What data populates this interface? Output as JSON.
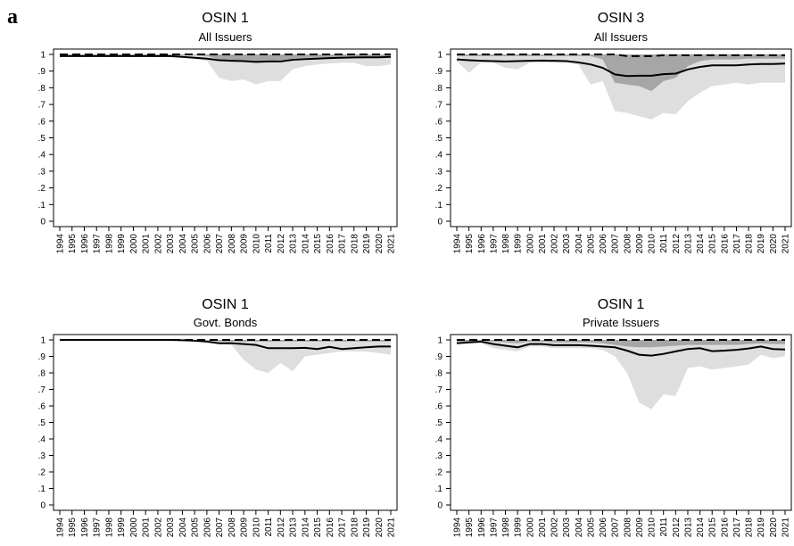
{
  "figure": {
    "panel_letter": "a"
  },
  "chart_data": [
    {
      "type": "line",
      "title": "OSIN 1",
      "subtitle": "All Issuers",
      "x": [
        1994,
        1995,
        1996,
        1997,
        1998,
        1999,
        2000,
        2001,
        2002,
        2003,
        2004,
        2005,
        2006,
        2007,
        2008,
        2009,
        2010,
        2011,
        2012,
        2013,
        2014,
        2015,
        2016,
        2017,
        2018,
        2019,
        2020,
        2021
      ],
      "ylim": [
        0,
        1
      ],
      "yticks": [
        0,
        0.1,
        0.2,
        0.3,
        0.4,
        0.5,
        0.6,
        0.7,
        0.8,
        0.9,
        1
      ],
      "ytick_labels": [
        "0",
        ".1",
        ".2",
        ".3",
        ".4",
        ".5",
        ".6",
        ".7",
        ".8",
        ".9",
        "1"
      ],
      "grid": false,
      "series": [
        {
          "style": "dashed",
          "values": [
            1,
            1,
            1,
            1,
            1,
            1,
            1,
            1,
            1,
            1,
            1,
            1,
            1,
            1,
            1,
            1,
            1,
            1,
            1,
            1,
            1,
            1,
            1,
            1,
            1,
            1,
            1,
            1
          ]
        },
        {
          "style": "solid",
          "values": [
            0.99,
            0.99,
            0.99,
            0.99,
            0.99,
            0.99,
            0.99,
            0.99,
            0.99,
            0.99,
            0.985,
            0.98,
            0.975,
            0.965,
            0.962,
            0.96,
            0.955,
            0.958,
            0.958,
            0.968,
            0.972,
            0.975,
            0.978,
            0.98,
            0.982,
            0.983,
            0.983,
            0.985
          ]
        }
      ],
      "bands": [
        {
          "shade": "light",
          "lower": [
            0.99,
            0.99,
            0.99,
            0.99,
            0.99,
            0.99,
            0.99,
            0.99,
            0.99,
            0.99,
            0.985,
            0.975,
            0.96,
            0.86,
            0.84,
            0.85,
            0.82,
            0.84,
            0.84,
            0.91,
            0.93,
            0.94,
            0.945,
            0.95,
            0.95,
            0.93,
            0.93,
            0.94
          ],
          "upper": [
            1,
            1,
            1,
            1,
            1,
            1,
            1,
            1,
            1,
            1,
            1,
            1,
            1,
            1,
            1,
            1,
            1,
            1,
            1,
            1,
            1,
            1,
            1,
            1,
            1,
            1,
            1,
            1
          ]
        },
        {
          "shade": "dark",
          "lower": [
            0.995,
            0.995,
            0.995,
            0.995,
            0.995,
            0.995,
            0.995,
            0.995,
            0.995,
            0.995,
            0.995,
            0.995,
            0.99,
            0.97,
            0.965,
            0.965,
            0.96,
            0.96,
            0.965,
            0.975,
            0.98,
            0.98,
            0.982,
            0.985,
            0.985,
            0.985,
            0.985,
            0.985
          ],
          "upper": [
            1,
            1,
            1,
            1,
            1,
            1,
            1,
            1,
            1,
            1,
            1,
            1,
            1,
            1,
            1,
            1,
            1,
            1,
            1,
            1,
            1,
            1,
            1,
            1,
            1,
            1,
            1,
            1
          ]
        }
      ]
    },
    {
      "type": "line",
      "title": "OSIN 3",
      "subtitle": "All Issuers",
      "x": [
        1994,
        1995,
        1996,
        1997,
        1998,
        1999,
        2000,
        2001,
        2002,
        2003,
        2004,
        2005,
        2006,
        2007,
        2008,
        2009,
        2010,
        2011,
        2012,
        2013,
        2014,
        2015,
        2016,
        2017,
        2018,
        2019,
        2020,
        2021
      ],
      "ylim": [
        0,
        1
      ],
      "yticks": [
        0,
        0.1,
        0.2,
        0.3,
        0.4,
        0.5,
        0.6,
        0.7,
        0.8,
        0.9,
        1
      ],
      "ytick_labels": [
        "0",
        ".1",
        ".2",
        ".3",
        ".4",
        ".5",
        ".6",
        ".7",
        ".8",
        ".9",
        "1"
      ],
      "grid": false,
      "series": [
        {
          "style": "dashed",
          "values": [
            1,
            1,
            1,
            1,
            1,
            1,
            1,
            1,
            1,
            1,
            1,
            1,
            1,
            1,
            0.99,
            0.99,
            0.99,
            0.995,
            0.995,
            0.995,
            0.995,
            0.995,
            0.995,
            0.995,
            0.995,
            0.995,
            0.995,
            0.995
          ]
        },
        {
          "style": "solid",
          "values": [
            0.97,
            0.965,
            0.962,
            0.96,
            0.958,
            0.96,
            0.962,
            0.963,
            0.962,
            0.96,
            0.952,
            0.94,
            0.92,
            0.88,
            0.87,
            0.872,
            0.872,
            0.882,
            0.885,
            0.91,
            0.925,
            0.935,
            0.935,
            0.935,
            0.94,
            0.942,
            0.943,
            0.945
          ]
        }
      ],
      "bands": [
        {
          "shade": "light",
          "lower": [
            0.96,
            0.89,
            0.95,
            0.95,
            0.92,
            0.91,
            0.95,
            0.95,
            0.95,
            0.95,
            0.94,
            0.82,
            0.84,
            0.66,
            0.65,
            0.63,
            0.61,
            0.65,
            0.64,
            0.72,
            0.77,
            0.81,
            0.82,
            0.83,
            0.82,
            0.83,
            0.83,
            0.83
          ],
          "upper": [
            1,
            1,
            1,
            1,
            1,
            1,
            1,
            1,
            1,
            1,
            1,
            1,
            1,
            1,
            1,
            1,
            1,
            1,
            1,
            1,
            1,
            1,
            1,
            1,
            1,
            1,
            1,
            1
          ]
        },
        {
          "shade": "dark",
          "lower": [
            0.99,
            0.99,
            0.99,
            0.99,
            0.99,
            0.99,
            0.99,
            0.99,
            0.99,
            0.99,
            0.99,
            0.99,
            0.97,
            0.83,
            0.82,
            0.81,
            0.78,
            0.84,
            0.86,
            0.93,
            0.96,
            0.97,
            0.97,
            0.97,
            0.975,
            0.975,
            0.975,
            0.975
          ],
          "upper": [
            1,
            1,
            1,
            1,
            1,
            1,
            1,
            1,
            1,
            1,
            1,
            1,
            1,
            1,
            1,
            1,
            1,
            1,
            1,
            1,
            1,
            1,
            1,
            1,
            1,
            1,
            1,
            1
          ]
        }
      ]
    },
    {
      "type": "line",
      "title": "OSIN 1",
      "subtitle": "Govt. Bonds",
      "x": [
        1994,
        1995,
        1996,
        1997,
        1998,
        1999,
        2000,
        2001,
        2002,
        2003,
        2004,
        2005,
        2006,
        2007,
        2008,
        2009,
        2010,
        2011,
        2012,
        2013,
        2014,
        2015,
        2016,
        2017,
        2018,
        2019,
        2020,
        2021
      ],
      "ylim": [
        0,
        1
      ],
      "yticks": [
        0,
        0.1,
        0.2,
        0.3,
        0.4,
        0.5,
        0.6,
        0.7,
        0.8,
        0.9,
        1
      ],
      "ytick_labels": [
        "0",
        ".1",
        ".2",
        ".3",
        ".4",
        ".5",
        ".6",
        ".7",
        ".8",
        ".9",
        "1"
      ],
      "grid": false,
      "series": [
        {
          "style": "dashed",
          "values": [
            1,
            1,
            1,
            1,
            1,
            1,
            1,
            1,
            1,
            1,
            1,
            1,
            1,
            1,
            1,
            1,
            1,
            1,
            1,
            1,
            1,
            1,
            1,
            1,
            1,
            1,
            1,
            1
          ]
        },
        {
          "style": "solid",
          "values": [
            1,
            1,
            1,
            1,
            1,
            1,
            1,
            1,
            1,
            1,
            0.998,
            0.995,
            0.99,
            0.98,
            0.98,
            0.975,
            0.97,
            0.95,
            0.95,
            0.95,
            0.952,
            0.945,
            0.958,
            0.945,
            0.95,
            0.955,
            0.96,
            0.96
          ]
        }
      ],
      "bands": [
        {
          "shade": "light",
          "lower": [
            1,
            1,
            1,
            1,
            1,
            1,
            1,
            1,
            1,
            1,
            0.995,
            0.99,
            0.99,
            0.98,
            0.97,
            0.88,
            0.82,
            0.8,
            0.86,
            0.81,
            0.9,
            0.91,
            0.92,
            0.93,
            0.93,
            0.93,
            0.92,
            0.91
          ],
          "upper": [
            1,
            1,
            1,
            1,
            1,
            1,
            1,
            1,
            1,
            1,
            1,
            1,
            1,
            1,
            1,
            1,
            1,
            1,
            1,
            1,
            1,
            1,
            1,
            1,
            1,
            1,
            1,
            1
          ]
        },
        {
          "shade": "dark",
          "lower": [
            1,
            1,
            1,
            1,
            1,
            1,
            1,
            1,
            1,
            1,
            1,
            1,
            0.998,
            0.992,
            0.99,
            0.99,
            0.99,
            0.99,
            0.99,
            0.99,
            0.99,
            0.99,
            0.99,
            0.99,
            0.99,
            0.99,
            0.99,
            0.99
          ],
          "upper": [
            1,
            1,
            1,
            1,
            1,
            1,
            1,
            1,
            1,
            1,
            1,
            1,
            1,
            1,
            1,
            1,
            1,
            1,
            1,
            1,
            1,
            1,
            1,
            1,
            1,
            1,
            1,
            1
          ]
        }
      ]
    },
    {
      "type": "line",
      "title": "OSIN 1",
      "subtitle": "Private Issuers",
      "x": [
        1994,
        1995,
        1996,
        1997,
        1998,
        1999,
        2000,
        2001,
        2002,
        2003,
        2004,
        2005,
        2006,
        2007,
        2008,
        2009,
        2010,
        2011,
        2012,
        2013,
        2014,
        2015,
        2016,
        2017,
        2018,
        2019,
        2020,
        2021
      ],
      "ylim": [
        0,
        1
      ],
      "yticks": [
        0,
        0.1,
        0.2,
        0.3,
        0.4,
        0.5,
        0.6,
        0.7,
        0.8,
        0.9,
        1
      ],
      "ytick_labels": [
        "0",
        ".1",
        ".2",
        ".3",
        ".4",
        ".5",
        ".6",
        ".7",
        ".8",
        ".9",
        "1"
      ],
      "grid": false,
      "series": [
        {
          "style": "dashed",
          "values": [
            1,
            1,
            1,
            1,
            1,
            1,
            1,
            1,
            1,
            1,
            1,
            1,
            1,
            1,
            1,
            1,
            1,
            1,
            1,
            1,
            1,
            1,
            1,
            1,
            1,
            1,
            1,
            1
          ]
        },
        {
          "style": "solid",
          "values": [
            0.98,
            0.985,
            0.99,
            0.975,
            0.965,
            0.955,
            0.975,
            0.975,
            0.968,
            0.968,
            0.968,
            0.965,
            0.96,
            0.955,
            0.935,
            0.91,
            0.905,
            0.915,
            0.93,
            0.945,
            0.95,
            0.932,
            0.935,
            0.94,
            0.948,
            0.96,
            0.945,
            0.942
          ]
        }
      ],
      "bands": [
        {
          "shade": "light",
          "lower": [
            0.975,
            0.98,
            0.98,
            0.95,
            0.94,
            0.93,
            0.96,
            0.96,
            0.95,
            0.95,
            0.95,
            0.95,
            0.94,
            0.9,
            0.8,
            0.62,
            0.58,
            0.67,
            0.66,
            0.83,
            0.84,
            0.82,
            0.83,
            0.84,
            0.85,
            0.91,
            0.89,
            0.9
          ],
          "upper": [
            1,
            1,
            1,
            1,
            1,
            1,
            1,
            1,
            1,
            1,
            1,
            1,
            1,
            1,
            1,
            1,
            1,
            1,
            1,
            1,
            1,
            1,
            1,
            1,
            1,
            1,
            1,
            1
          ]
        },
        {
          "shade": "dark",
          "lower": [
            0.99,
            0.99,
            0.995,
            0.99,
            0.985,
            0.98,
            0.99,
            0.99,
            0.985,
            0.985,
            0.985,
            0.985,
            0.98,
            0.97,
            0.96,
            0.955,
            0.955,
            0.96,
            0.965,
            0.97,
            0.97,
            0.97,
            0.97,
            0.97,
            0.975,
            0.98,
            0.975,
            0.975
          ],
          "upper": [
            1,
            1,
            1,
            1,
            1,
            1,
            1,
            1,
            1,
            1,
            1,
            1,
            1,
            1,
            1,
            1,
            1,
            1,
            1,
            1,
            1,
            1,
            1,
            1,
            1,
            1,
            1,
            1
          ]
        }
      ]
    }
  ],
  "colors": {
    "light_band": "#dedede",
    "dark_band": "#a6a6a6",
    "line": "#000000",
    "axis": "#000000"
  }
}
